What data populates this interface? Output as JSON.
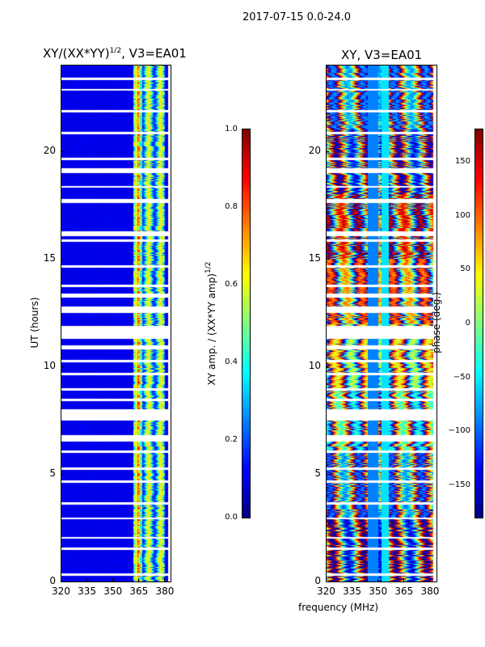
{
  "suptitle": "2017-07-15 0.0-24.0",
  "chart_data": [
    {
      "type": "heatmap",
      "title": "XY/(XX*YY)",
      "title_sup": "1/2",
      "title_suffix": ", V3=EA01",
      "xlabel": "",
      "ylabel": "UT (hours)",
      "xlim": [
        320,
        384
      ],
      "ylim": [
        0,
        24
      ],
      "xticks": [
        "320",
        "335",
        "350",
        "365",
        "380"
      ],
      "xtick_values": [
        320,
        335,
        350,
        365,
        380
      ],
      "yticks": [
        "0",
        "5",
        "10",
        "15",
        "20"
      ],
      "ytick_values": [
        0,
        5,
        10,
        15,
        20
      ],
      "colorbar": {
        "label": "XY amp. / (XX*YY amp)",
        "label_sup": "1/2",
        "range": [
          0,
          1
        ],
        "ticks": [
          "0.0",
          "0.2",
          "0.4",
          "0.6",
          "0.8",
          "1.0"
        ],
        "tick_values": [
          0,
          0.2,
          0.4,
          0.6,
          0.8,
          1.0
        ],
        "colormap": "jet"
      },
      "description_values": {
        "background_amp": 0.1,
        "bright_band_mhz": [
          362,
          380
        ],
        "bright_band_amp": 0.5
      }
    },
    {
      "type": "heatmap",
      "title": "XY, V3=EA01",
      "xlabel": "frequency (MHz)",
      "ylabel": "",
      "xlim": [
        320,
        384
      ],
      "ylim": [
        0,
        24
      ],
      "xticks": [
        "320",
        "335",
        "350",
        "365",
        "380"
      ],
      "xtick_values": [
        320,
        335,
        350,
        365,
        380
      ],
      "yticks": [
        "0",
        "5",
        "10",
        "15",
        "20"
      ],
      "ytick_values": [
        0,
        5,
        10,
        15,
        20
      ],
      "colorbar": {
        "label": "phase (deg.)",
        "range": [
          -180,
          180
        ],
        "ticks": [
          "−150",
          "−100",
          "−50",
          "0",
          "50",
          "100",
          "150"
        ],
        "tick_values": [
          -150,
          -100,
          -50,
          0,
          50,
          100,
          150
        ],
        "colormap": "jet"
      }
    }
  ],
  "flagged_hours": [
    [
      0.3,
      0.4
    ],
    [
      1.5,
      1.6
    ],
    [
      2.0,
      2.1
    ],
    [
      2.9,
      3.0
    ],
    [
      3.6,
      3.7
    ],
    [
      4.6,
      4.7
    ],
    [
      5.2,
      5.3
    ],
    [
      6.0,
      6.1
    ],
    [
      6.5,
      6.8
    ],
    [
      7.5,
      8.0
    ],
    [
      8.4,
      8.5
    ],
    [
      8.9,
      9.0
    ],
    [
      9.6,
      9.7
    ],
    [
      10.2,
      10.3
    ],
    [
      10.8,
      11.0
    ],
    [
      11.3,
      11.9
    ],
    [
      12.5,
      12.8
    ],
    [
      13.2,
      13.4
    ],
    [
      13.7,
      13.8
    ],
    [
      14.6,
      14.7
    ],
    [
      15.8,
      15.9
    ],
    [
      16.05,
      16.3
    ],
    [
      17.6,
      17.8
    ],
    [
      18.3,
      18.4
    ],
    [
      19.0,
      19.2
    ],
    [
      19.6,
      19.7
    ],
    [
      20.8,
      20.9
    ],
    [
      21.8,
      21.9
    ],
    [
      22.8,
      22.9
    ],
    [
      23.3,
      23.4
    ]
  ]
}
